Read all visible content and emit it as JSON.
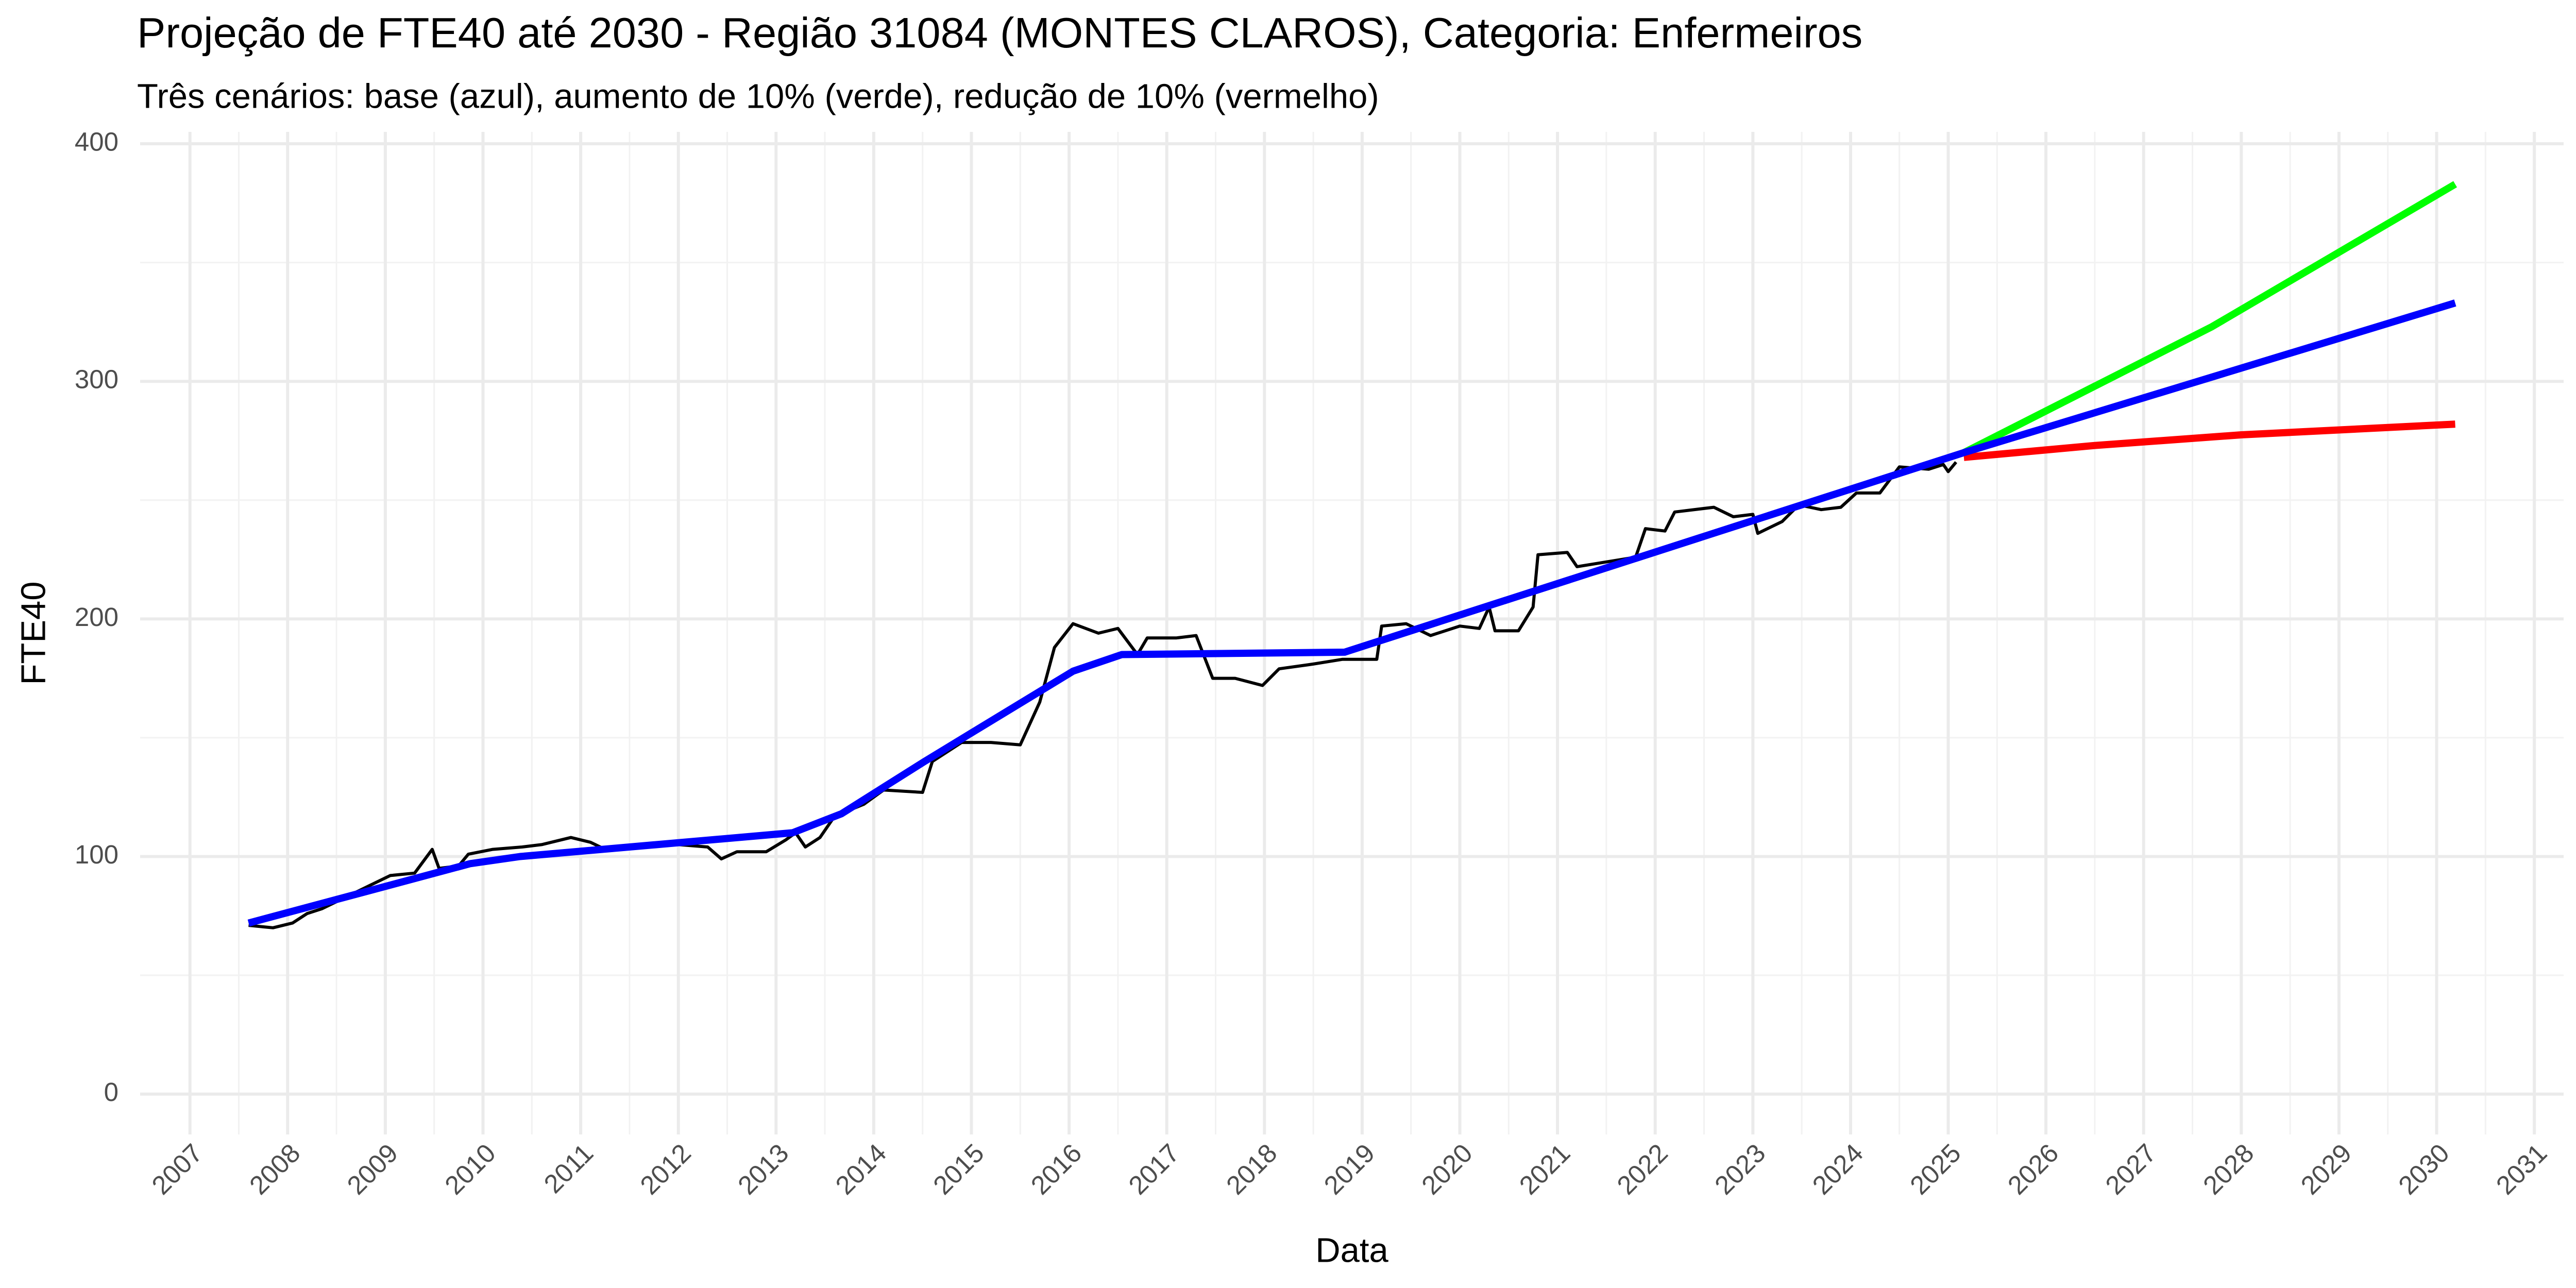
{
  "chart_data": {
    "type": "line",
    "title": "Projeção de FTE40 até 2030 - Região 31084 (MONTES CLAROS), Categoria: Enfermeiros",
    "subtitle": "Três cenários: base (azul), aumento de 10% (verde), redução de 10% (vermelho)",
    "x_label": "Data",
    "y_label": "FTE40",
    "xlim": [
      2006.49,
      2031.3
    ],
    "ylim": [
      -17,
      405
    ],
    "xticks": [
      2007,
      2008,
      2009,
      2010,
      2011,
      2012,
      2013,
      2014,
      2015,
      2016,
      2017,
      2018,
      2019,
      2020,
      2021,
      2022,
      2023,
      2024,
      2025,
      2026,
      2027,
      2028,
      2029,
      2030,
      2031
    ],
    "yticks": [
      0,
      100,
      200,
      300,
      400
    ],
    "grid": true,
    "series": [
      {
        "color": "#000000",
        "x": [
          2007.6,
          2007.85,
          2008.05,
          2008.2,
          2008.35,
          2008.6,
          2008.85,
          2009.05,
          2009.3,
          2009.48,
          2009.55,
          2009.75,
          2009.85,
          2010.1,
          2010.4,
          2010.6,
          2010.9,
          2011.1,
          2011.25,
          2011.6,
          2012.0,
          2012.3,
          2012.44,
          2012.6,
          2012.9,
          2013.1,
          2013.2,
          2013.3,
          2013.45,
          2013.6,
          2013.9,
          2014.1,
          2014.5,
          2014.6,
          2014.9,
          2015.2,
          2015.5,
          2015.7,
          2015.85,
          2016.04,
          2016.3,
          2016.5,
          2016.7,
          2016.8,
          2017.1,
          2017.3,
          2017.47,
          2017.7,
          2017.98,
          2018.15,
          2018.5,
          2018.8,
          2019.15,
          2019.2,
          2019.45,
          2019.7,
          2020.0,
          2020.2,
          2020.3,
          2020.36,
          2020.6,
          2020.75,
          2020.8,
          2021.1,
          2021.2,
          2021.5,
          2021.8,
          2021.9,
          2022.1,
          2022.2,
          2022.6,
          2022.8,
          2023.0,
          2023.05,
          2023.3,
          2023.47,
          2023.7,
          2023.9,
          2024.06,
          2024.3,
          2024.5,
          2024.8,
          2024.95,
          2025.0,
          2025.08
        ],
        "values": [
          71,
          70,
          72,
          76,
          78,
          83,
          88,
          92,
          93,
          103,
          95,
          96,
          101,
          103,
          104,
          105,
          108,
          106,
          103,
          104,
          105,
          104,
          99,
          102,
          102,
          107,
          110,
          104,
          108,
          117,
          122,
          128,
          127,
          140,
          148,
          148,
          147,
          165,
          188,
          198,
          194,
          196,
          185,
          192,
          192,
          193,
          175,
          175,
          172,
          179,
          181,
          183,
          183,
          197,
          198,
          193,
          197,
          196,
          205,
          195,
          195,
          205,
          227,
          228,
          222,
          224,
          226,
          238,
          237,
          245,
          247,
          243,
          244,
          236,
          241,
          248,
          246,
          247,
          253,
          253,
          264,
          263,
          265,
          262,
          266
        ]
      },
      {
        "color": "#00ff00",
        "x": [
          2025.16,
          2027.7,
          2030.19
        ],
        "values": [
          270,
          323,
          383
        ]
      },
      {
        "color": "#ff0000",
        "x": [
          2025.16,
          2026.5,
          2028.0,
          2030.19
        ],
        "values": [
          268,
          273,
          277.5,
          282
        ]
      },
      {
        "color": "#0000ff",
        "x": [
          2007.6,
          2009.87,
          2010.38,
          2013.17,
          2013.67,
          2014.52,
          2016.04,
          2016.54,
          2018.82,
          2025.16,
          2030.19
        ],
        "values": [
          72,
          97,
          100,
          110,
          118,
          140,
          178,
          185,
          186,
          270,
          333
        ]
      }
    ]
  }
}
